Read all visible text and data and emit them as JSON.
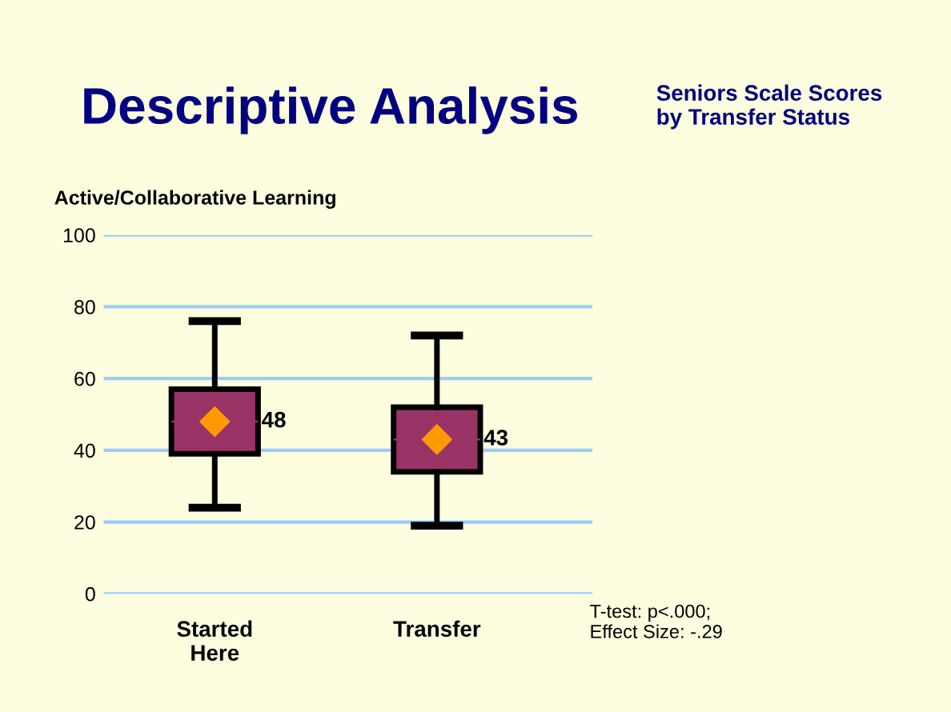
{
  "chart_data": {
    "type": "box",
    "title": "Descriptive Analysis",
    "subtitle": "Seniors Scale Scores\nby Transfer Status",
    "ylabel": "Active/Collaborative Learning",
    "categories": [
      "Started\nHere",
      "Transfer"
    ],
    "boxes": [
      {
        "low": 24,
        "q1": 39,
        "median": 48,
        "q3": 57,
        "high": 76
      },
      {
        "low": 19,
        "q1": 34,
        "median": 43,
        "q3": 52,
        "high": 72
      }
    ],
    "color": "#993366",
    "series": [
      {
        "type": "scatter",
        "x": [
          "Started\nHere",
          "Transfer"
        ],
        "values": [
          48,
          43
        ],
        "color": "#ff9900",
        "marker": "diamond",
        "value_labels": [
          "48",
          "43"
        ]
      }
    ],
    "ylim": [
      0,
      100
    ],
    "yticks": [
      0,
      20,
      40,
      60,
      80,
      100
    ],
    "grid": "y",
    "annotations": [
      "T-test: p<.000;\nEffect Size: -.29"
    ]
  }
}
